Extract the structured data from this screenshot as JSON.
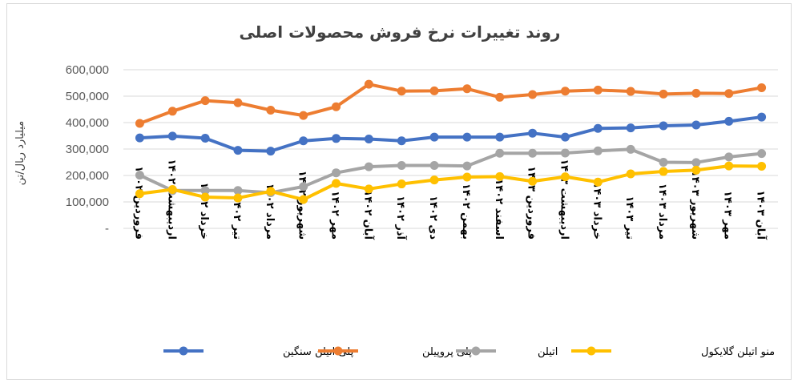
{
  "chart_data": {
    "type": "line",
    "title": "روند تغییرات نرخ فروش محصولات اصلی",
    "ylabel": "میلیارد ریال/تن",
    "xlabel": "",
    "ylim": [
      0,
      600000
    ],
    "yticks": [
      "-",
      "100,000",
      "200,000",
      "300,000",
      "400,000",
      "500,000",
      "600,000"
    ],
    "grid": true,
    "legend_position": "bottom",
    "categories": [
      "فروردین ۱۴۰۲",
      "اردیبهشت ۱۴۰۲",
      "خرداد ۱۴۰۲",
      "تیر ۱۴۰۲",
      "مرداد ۱۴۰۲",
      "شهریور ۱۴۰۲",
      "مهر ۱۴۰۲",
      "آبان ۱۴۰۲",
      "آذر ۱۴۰۲",
      "دی ۱۴۰۲",
      "بهمن ۱۴۰۲",
      "اسفند ۱۴۰۲",
      "فروردین ۱۴۰۳",
      "اردیبهشت ۱۴۰۳",
      "خرداد ۱۴۰۳",
      "تیر ۱۴۰۳",
      "مرداد ۱۴۰۳",
      "شهریور ۱۴۰۳",
      "مهر ۱۴۰۳",
      "آبان ۱۴۰۳"
    ],
    "series": [
      {
        "name": "پلی اتیلن سنگین",
        "color": "#4472c4",
        "values": [
          342000,
          349000,
          341000,
          295000,
          292000,
          331000,
          340000,
          338000,
          331000,
          345000,
          345000,
          345000,
          360000,
          345000,
          378000,
          380000,
          388000,
          391000,
          405000,
          421000
        ]
      },
      {
        "name": "پلی پروپیلن",
        "color": "#ed7d31",
        "values": [
          397000,
          443000,
          483000,
          475000,
          447000,
          427000,
          460000,
          545000,
          519000,
          520000,
          528000,
          496000,
          506000,
          519000,
          523000,
          518000,
          508000,
          511000,
          510000,
          532000
        ]
      },
      {
        "name": "اتیلن",
        "color": "#a5a5a5",
        "values": [
          201000,
          143000,
          143000,
          143000,
          135000,
          158000,
          210000,
          233000,
          238000,
          238000,
          236000,
          284000,
          284000,
          285000,
          293000,
          299000,
          250000,
          249000,
          270000,
          283000
        ]
      },
      {
        "name": "منو اتیلن گلایکول",
        "color": "#ffc000",
        "values": [
          131000,
          147000,
          118000,
          115000,
          140000,
          109000,
          170000,
          149000,
          168000,
          183000,
          194000,
          196000,
          178000,
          195000,
          175000,
          206000,
          215000,
          220000,
          236000,
          235000
        ]
      }
    ]
  }
}
